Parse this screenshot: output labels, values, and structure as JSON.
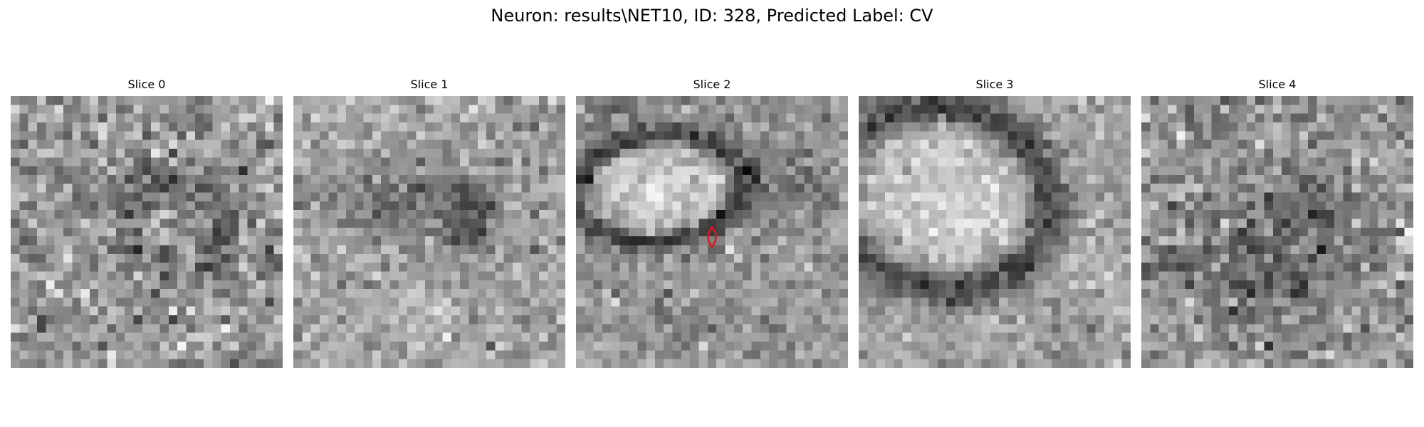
{
  "title": "Neuron: results\\NET10, ID: 328, Predicted Label: CV",
  "grid_size": 31,
  "slices": [
    {
      "label": "Slice 0",
      "pattern": "noise-faint-ring",
      "marker": false
    },
    {
      "label": "Slice 1",
      "pattern": "dark-band-top",
      "marker": false
    },
    {
      "label": "Slice 2",
      "pattern": "bright-blob-ring",
      "marker": true
    },
    {
      "label": "Slice 3",
      "pattern": "large-bright-ring",
      "marker": false
    },
    {
      "label": "Slice 4",
      "pattern": "noise-dark-lower",
      "marker": false
    }
  ],
  "marker": {
    "shape": "lens",
    "color": "#e0141e"
  }
}
